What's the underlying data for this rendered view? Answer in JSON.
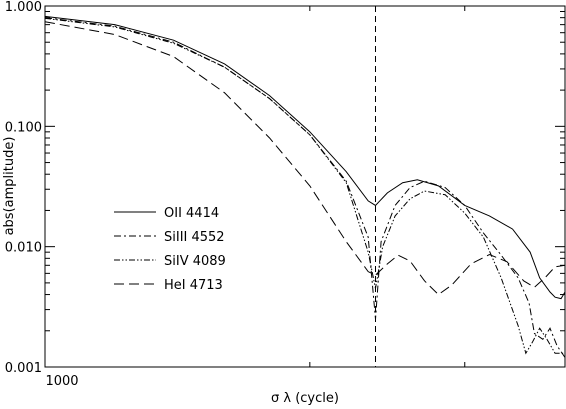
{
  "chart_data": {
    "type": "line",
    "title": "",
    "xlabel": "σ λ (cycle)",
    "ylabel": "abs(amplitude)",
    "xscale": "log",
    "yscale": "log",
    "xlim": [
      1000,
      3900
    ],
    "ylim": [
      0.001,
      1.0
    ],
    "x_ticks": [
      1000
    ],
    "x_tick_labels": [
      "1000"
    ],
    "y_ticks": [
      0.001,
      0.01,
      0.1,
      1.0
    ],
    "y_tick_labels": [
      "0.001",
      "0.010",
      "0.100",
      "1.000"
    ],
    "grid": false,
    "legend_position": "lower-left",
    "vline": {
      "x": 2375,
      "style": "dashed"
    },
    "series": [
      {
        "name": "OII 4414",
        "style": "solid",
        "points": [
          [
            1000,
            0.82
          ],
          [
            1200,
            0.7
          ],
          [
            1400,
            0.52
          ],
          [
            1600,
            0.33
          ],
          [
            1800,
            0.18
          ],
          [
            2000,
            0.09
          ],
          [
            2200,
            0.042
          ],
          [
            2330,
            0.024
          ],
          [
            2375,
            0.022
          ],
          [
            2450,
            0.028
          ],
          [
            2550,
            0.034
          ],
          [
            2650,
            0.036
          ],
          [
            2800,
            0.032
          ],
          [
            3000,
            0.022
          ],
          [
            3200,
            0.018
          ],
          [
            3400,
            0.014
          ],
          [
            3560,
            0.009
          ],
          [
            3650,
            0.0055
          ],
          [
            3750,
            0.0042
          ],
          [
            3800,
            0.0038
          ],
          [
            3860,
            0.0037
          ],
          [
            3900,
            0.0042
          ]
        ]
      },
      {
        "name": "SiIII 4552",
        "style": "dash-dot",
        "points": [
          [
            1000,
            0.8
          ],
          [
            1200,
            0.68
          ],
          [
            1400,
            0.5
          ],
          [
            1600,
            0.31
          ],
          [
            1800,
            0.17
          ],
          [
            2000,
            0.085
          ],
          [
            2200,
            0.035
          ],
          [
            2330,
            0.012
          ],
          [
            2375,
            0.0025
          ],
          [
            2410,
            0.011
          ],
          [
            2500,
            0.022
          ],
          [
            2600,
            0.031
          ],
          [
            2700,
            0.035
          ],
          [
            2850,
            0.031
          ],
          [
            3000,
            0.022
          ],
          [
            3150,
            0.013
          ],
          [
            3300,
            0.0085
          ],
          [
            3450,
            0.0055
          ],
          [
            3550,
            0.0034
          ],
          [
            3600,
            0.0019
          ],
          [
            3680,
            0.0017
          ],
          [
            3750,
            0.0021
          ],
          [
            3820,
            0.0015
          ],
          [
            3900,
            0.0012
          ]
        ]
      },
      {
        "name": "SiIV 4089",
        "style": "dash-dot-dot",
        "points": [
          [
            1000,
            0.79
          ],
          [
            1200,
            0.67
          ],
          [
            1400,
            0.49
          ],
          [
            1600,
            0.31
          ],
          [
            1800,
            0.17
          ],
          [
            2000,
            0.085
          ],
          [
            2200,
            0.034
          ],
          [
            2330,
            0.009
          ],
          [
            2375,
            0.0045
          ],
          [
            2420,
            0.01
          ],
          [
            2500,
            0.018
          ],
          [
            2600,
            0.025
          ],
          [
            2700,
            0.029
          ],
          [
            2850,
            0.027
          ],
          [
            3000,
            0.019
          ],
          [
            3150,
            0.012
          ],
          [
            3300,
            0.0055
          ],
          [
            3450,
            0.0022
          ],
          [
            3520,
            0.0013
          ],
          [
            3580,
            0.0016
          ],
          [
            3650,
            0.0021
          ],
          [
            3720,
            0.0017
          ],
          [
            3800,
            0.0013
          ],
          [
            3900,
            0.0013
          ]
        ]
      },
      {
        "name": "HeI 4713",
        "style": "dashed",
        "points": [
          [
            1000,
            0.74
          ],
          [
            1200,
            0.58
          ],
          [
            1400,
            0.38
          ],
          [
            1600,
            0.19
          ],
          [
            1800,
            0.08
          ],
          [
            2000,
            0.032
          ],
          [
            2200,
            0.011
          ],
          [
            2330,
            0.0062
          ],
          [
            2375,
            0.0058
          ],
          [
            2450,
            0.0072
          ],
          [
            2520,
            0.0085
          ],
          [
            2600,
            0.0076
          ],
          [
            2700,
            0.0052
          ],
          [
            2800,
            0.004
          ],
          [
            2900,
            0.0048
          ],
          [
            3050,
            0.0072
          ],
          [
            3200,
            0.0086
          ],
          [
            3350,
            0.0075
          ],
          [
            3500,
            0.0052
          ],
          [
            3600,
            0.0046
          ],
          [
            3700,
            0.0055
          ],
          [
            3800,
            0.0068
          ],
          [
            3900,
            0.007
          ]
        ]
      }
    ]
  }
}
